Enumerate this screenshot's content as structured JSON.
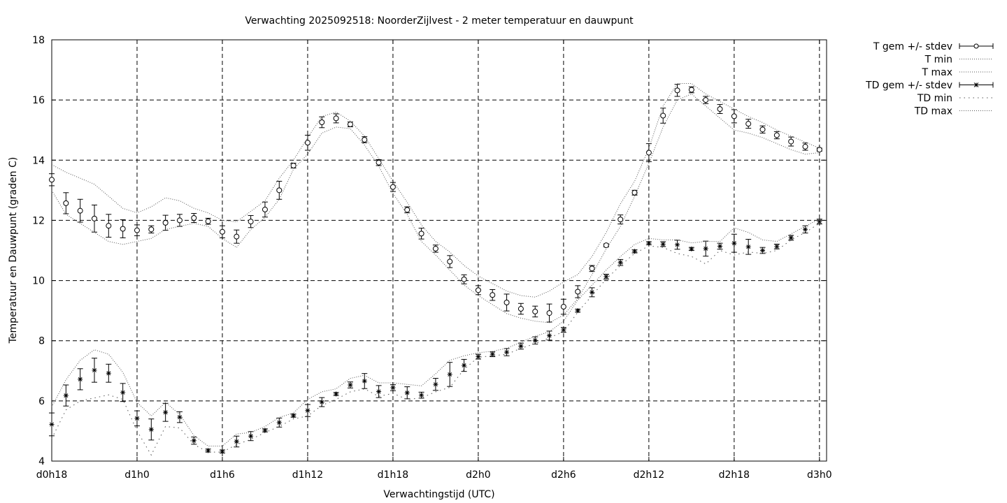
{
  "chart_data": {
    "type": "line",
    "title": "Verwachting 2025092518: NoorderZijlvest - 2 meter temperatuur en dauwpunt",
    "xlabel": "Verwachtingstijd (UTC)",
    "ylabel": "Temperatuur en Dauwpunt (graden C)",
    "xlim": [
      18,
      72.5
    ],
    "ylim": [
      4,
      18
    ],
    "grid": true,
    "legend_position": "outside-top-right",
    "x_ticks": [
      {
        "x": 18,
        "label": "d0h18"
      },
      {
        "x": 24,
        "label": "d1h0"
      },
      {
        "x": 30,
        "label": "d1h6"
      },
      {
        "x": 36,
        "label": "d1h12"
      },
      {
        "x": 42,
        "label": "d1h18"
      },
      {
        "x": 48,
        "label": "d2h0"
      },
      {
        "x": 54,
        "label": "d2h6"
      },
      {
        "x": 60,
        "label": "d2h12"
      },
      {
        "x": 66,
        "label": "d2h18"
      },
      {
        "x": 72,
        "label": "d3h0"
      }
    ],
    "y_ticks": [
      {
        "y": 4,
        "label": "4"
      },
      {
        "y": 6,
        "label": "6"
      },
      {
        "y": 8,
        "label": "8"
      },
      {
        "y": 10,
        "label": "10"
      },
      {
        "y": 12,
        "label": "12"
      },
      {
        "y": 14,
        "label": "14"
      },
      {
        "y": 16,
        "label": "16"
      },
      {
        "y": 18,
        "label": "18"
      }
    ],
    "x": [
      18,
      19,
      20,
      21,
      22,
      23,
      24,
      25,
      26,
      27,
      28,
      29,
      30,
      31,
      32,
      33,
      34,
      35,
      36,
      37,
      38,
      39,
      40,
      41,
      42,
      43,
      44,
      45,
      46,
      47,
      48,
      49,
      50,
      51,
      52,
      53,
      54,
      55,
      56,
      57,
      58,
      59,
      60,
      61,
      62,
      63,
      64,
      65,
      66,
      67,
      68,
      69,
      70,
      71,
      72
    ],
    "series": [
      {
        "name": "T gem +/- stdev",
        "marker": "circle",
        "values": [
          13.35,
          12.57,
          12.32,
          12.06,
          11.82,
          11.72,
          11.67,
          11.7,
          11.92,
          12.0,
          12.08,
          11.97,
          11.62,
          11.46,
          11.96,
          12.36,
          13.0,
          13.82,
          14.58,
          15.26,
          15.39,
          15.19,
          14.68,
          13.92,
          13.11,
          12.35,
          11.56,
          11.06,
          10.63,
          10.04,
          9.68,
          9.52,
          9.27,
          9.06,
          8.97,
          8.92,
          9.13,
          9.63,
          10.4,
          11.17,
          12.03,
          12.92,
          14.25,
          15.48,
          16.32,
          16.34,
          16.0,
          15.7,
          15.46,
          15.21,
          15.02,
          14.83,
          14.62,
          14.45,
          14.35
        ],
        "errors": [
          0.2,
          0.35,
          0.38,
          0.45,
          0.38,
          0.3,
          0.18,
          0.12,
          0.25,
          0.2,
          0.15,
          0.1,
          0.2,
          0.22,
          0.2,
          0.25,
          0.3,
          0.08,
          0.25,
          0.18,
          0.15,
          0.08,
          0.1,
          0.1,
          0.15,
          0.1,
          0.18,
          0.12,
          0.2,
          0.15,
          0.15,
          0.18,
          0.28,
          0.18,
          0.18,
          0.3,
          0.25,
          0.2,
          0.1,
          0.05,
          0.15,
          0.08,
          0.3,
          0.25,
          0.2,
          0.1,
          0.12,
          0.15,
          0.22,
          0.15,
          0.12,
          0.12,
          0.15,
          0.12,
          0.05
        ]
      },
      {
        "name": "T min",
        "style": "dotted",
        "values": [
          13.0,
          12.2,
          11.9,
          11.6,
          11.3,
          11.2,
          11.3,
          11.4,
          11.7,
          11.8,
          11.9,
          11.8,
          11.4,
          11.1,
          11.7,
          12.1,
          12.7,
          13.7,
          14.2,
          14.9,
          15.1,
          15.05,
          14.5,
          13.8,
          12.9,
          12.2,
          11.3,
          10.85,
          10.35,
          9.85,
          9.5,
          9.2,
          8.9,
          8.75,
          8.65,
          8.6,
          8.85,
          9.4,
          10.2,
          11.05,
          11.8,
          12.8,
          13.9,
          15.1,
          16.0,
          16.2,
          15.8,
          15.4,
          15.0,
          14.9,
          14.75,
          14.55,
          14.35,
          14.2,
          14.25
        ]
      },
      {
        "name": "T max",
        "style": "dotted",
        "values": [
          13.85,
          13.6,
          13.4,
          13.2,
          12.8,
          12.4,
          12.25,
          12.45,
          12.75,
          12.65,
          12.4,
          12.25,
          12.0,
          11.95,
          12.3,
          12.65,
          13.4,
          14.0,
          14.75,
          15.45,
          15.6,
          15.3,
          14.8,
          14.05,
          13.3,
          12.6,
          11.85,
          11.3,
          10.95,
          10.5,
          10.15,
          9.9,
          9.65,
          9.5,
          9.45,
          9.65,
          9.95,
          10.2,
          10.8,
          11.6,
          12.55,
          13.3,
          14.4,
          15.8,
          16.55,
          16.55,
          16.2,
          15.95,
          15.7,
          15.45,
          15.25,
          15.0,
          14.8,
          14.6,
          14.4
        ]
      },
      {
        "name": "TD gem +/- stdev",
        "marker": "asterisk",
        "values": [
          5.22,
          6.18,
          6.72,
          7.02,
          6.92,
          6.28,
          5.42,
          5.05,
          5.62,
          5.46,
          4.68,
          4.35,
          4.32,
          4.65,
          4.83,
          5.02,
          5.28,
          5.51,
          5.68,
          5.96,
          6.23,
          6.53,
          6.66,
          6.31,
          6.44,
          6.27,
          6.19,
          6.55,
          6.88,
          7.18,
          7.47,
          7.55,
          7.62,
          7.82,
          8.01,
          8.17,
          8.36,
          9.0,
          9.61,
          10.13,
          10.6,
          10.97,
          11.24,
          11.21,
          11.19,
          11.05,
          11.06,
          11.14,
          11.24,
          11.12,
          11.0,
          11.13,
          11.42,
          11.7,
          11.96
        ],
        "errors": [
          0.38,
          0.35,
          0.35,
          0.4,
          0.3,
          0.3,
          0.25,
          0.35,
          0.3,
          0.18,
          0.12,
          0.05,
          0.05,
          0.18,
          0.15,
          0.05,
          0.15,
          0.05,
          0.2,
          0.15,
          0.05,
          0.1,
          0.25,
          0.2,
          0.1,
          0.2,
          0.1,
          0.2,
          0.4,
          0.2,
          0.08,
          0.08,
          0.12,
          0.1,
          0.12,
          0.15,
          0.08,
          0.05,
          0.15,
          0.08,
          0.1,
          0.05,
          0.05,
          0.08,
          0.15,
          0.05,
          0.25,
          0.1,
          0.3,
          0.25,
          0.1,
          0.08,
          0.08,
          0.12,
          0.08
        ]
      },
      {
        "name": "TD min",
        "style": "dotted-sparse",
        "values": [
          4.75,
          5.7,
          6.0,
          6.1,
          6.2,
          6.05,
          5.0,
          4.2,
          5.15,
          5.1,
          4.55,
          4.3,
          4.3,
          4.55,
          4.72,
          4.95,
          5.15,
          5.4,
          5.5,
          5.85,
          6.05,
          6.3,
          6.4,
          6.15,
          6.25,
          6.05,
          6.1,
          6.3,
          6.45,
          7.05,
          7.45,
          7.5,
          7.55,
          7.75,
          7.9,
          8.1,
          8.3,
          8.95,
          9.5,
          10.05,
          10.5,
          10.9,
          11.15,
          11.1,
          10.9,
          10.8,
          10.55,
          11.0,
          10.85,
          10.95,
          10.9,
          11.0,
          11.35,
          11.6,
          11.9
        ]
      },
      {
        "name": "TD max",
        "style": "dotted",
        "values": [
          5.8,
          6.7,
          7.35,
          7.7,
          7.55,
          6.95,
          5.95,
          5.5,
          5.95,
          5.55,
          4.85,
          4.5,
          4.5,
          4.9,
          4.95,
          5.15,
          5.45,
          5.6,
          6.05,
          6.3,
          6.4,
          6.75,
          6.85,
          6.6,
          6.6,
          6.55,
          6.5,
          6.9,
          7.35,
          7.5,
          7.6,
          7.65,
          7.75,
          7.95,
          8.15,
          8.3,
          8.65,
          9.35,
          9.85,
          10.35,
          10.8,
          11.2,
          11.4,
          11.35,
          11.35,
          11.25,
          11.3,
          11.3,
          11.75,
          11.6,
          11.35,
          11.3,
          11.55,
          11.8,
          12.05
        ]
      }
    ]
  }
}
